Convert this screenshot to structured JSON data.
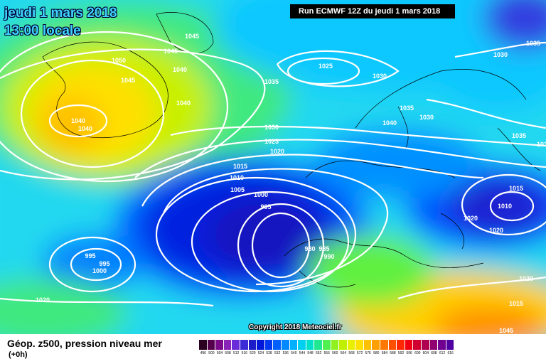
{
  "title": {
    "date": "jeudi 1 mars 2018",
    "time": "13:00 locale"
  },
  "run_info": "Run ECMWF 12Z du jeudi 1 mars 2018",
  "copyright": "Copyright 2018 Meteociel.fr",
  "legend": {
    "title": "Géop. z500, pression niveau mer",
    "subtitle": "(+0h)",
    "scale_values": [
      "496",
      "500",
      "504",
      "508",
      "512",
      "516",
      "520",
      "524",
      "528",
      "532",
      "536",
      "540",
      "544",
      "548",
      "552",
      "556",
      "560",
      "564",
      "568",
      "572",
      "576",
      "580",
      "584",
      "588",
      "592",
      "596",
      "600",
      "604",
      "608",
      "612",
      "616"
    ],
    "scale_colors": [
      "#2b0020",
      "#55004a",
      "#7a0a8a",
      "#8a23b8",
      "#6a2bd8",
      "#3c2cd8",
      "#1c1cc8",
      "#0018d8",
      "#0038f0",
      "#0060ff",
      "#0088ff",
      "#00b0ff",
      "#00d0f0",
      "#00e0c8",
      "#20e890",
      "#50f050",
      "#90f020",
      "#c0f000",
      "#e8f000",
      "#ffe000",
      "#ffc000",
      "#ffa000",
      "#ff7800",
      "#ff5000",
      "#ff2800",
      "#f00010",
      "#d00030",
      "#b00050",
      "#900070",
      "#700090",
      "#5000a0"
    ]
  },
  "isobar_labels": [
    "1045",
    "1045",
    "1050",
    "1040",
    "1045",
    "1040",
    "1040",
    "1040",
    "1035",
    "1025",
    "1030",
    "1030",
    "1030",
    "1035",
    "1040",
    "1035",
    "1030",
    "1025",
    "1020",
    "1015",
    "1010",
    "1005",
    "1000",
    "995",
    "980",
    "985",
    "990",
    "995",
    "995",
    "1000",
    "1020",
    "1015",
    "1010",
    "1020",
    "1020",
    "1020",
    "1015",
    "1035",
    "1035",
    "1045"
  ],
  "colors": {
    "title": "#3fd4ff",
    "isobar": "#ffffff"
  }
}
